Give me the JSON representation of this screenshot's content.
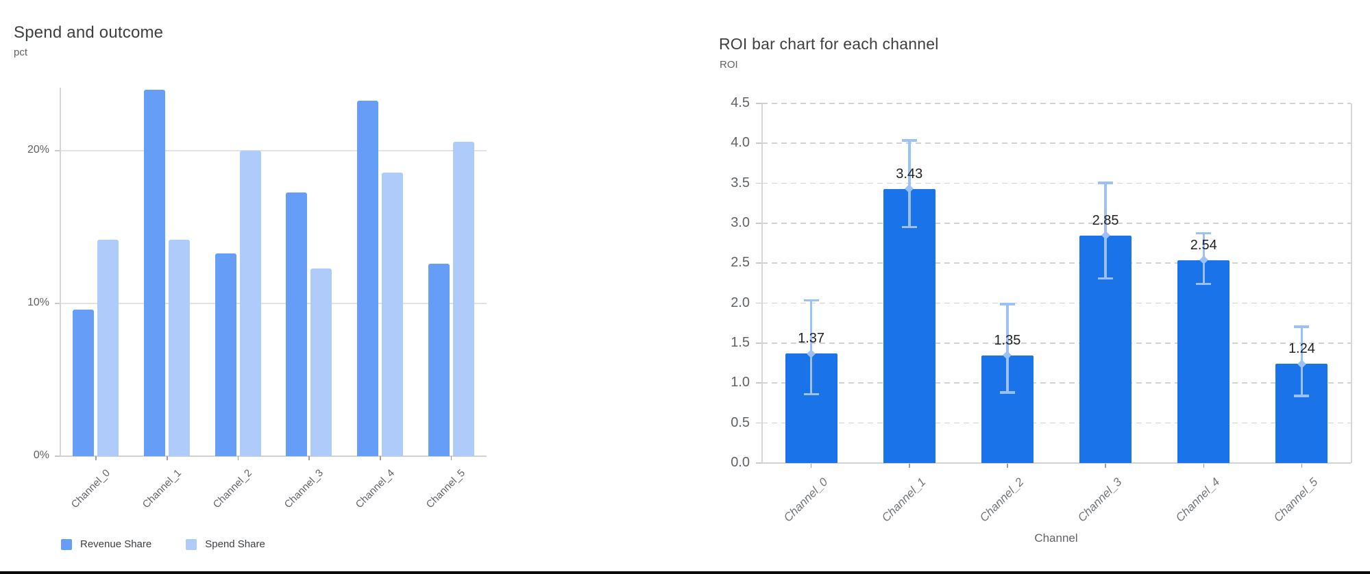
{
  "chart_data": [
    {
      "type": "bar",
      "title": "Spend and outcome",
      "ylabel": "pct",
      "xlabel": "",
      "categories": [
        "Channel_0",
        "Channel_1",
        "Channel_2",
        "Channel_3",
        "Channel_4",
        "Channel_5"
      ],
      "series": [
        {
          "name": "Revenue Share",
          "color": "#669df6",
          "values": [
            9.6,
            24.0,
            13.3,
            17.3,
            23.3,
            12.6
          ]
        },
        {
          "name": "Spend Share",
          "color": "#aecbfa",
          "values": [
            14.2,
            14.2,
            20.0,
            12.3,
            18.6,
            20.6
          ]
        }
      ],
      "values_unit": "percent",
      "ylim": [
        0,
        24.15
      ],
      "y_ticks": [
        {
          "value": 0,
          "label": "0%"
        },
        {
          "value": 10,
          "label": "10%"
        },
        {
          "value": 20,
          "label": "20%"
        }
      ],
      "grid": "horizontal-solid",
      "legend_position": "bottom-left"
    },
    {
      "type": "bar",
      "title": "ROI bar chart for each channel",
      "ylabel": "ROI",
      "xlabel": "Channel",
      "categories": [
        "Channel_0",
        "Channel_1",
        "Channel_2",
        "Channel_3",
        "Channel_4",
        "Channel_5"
      ],
      "values": [
        1.37,
        3.43,
        1.35,
        2.85,
        2.54,
        1.24
      ],
      "data_labels": [
        "1.37",
        "3.43",
        "1.35",
        "2.85",
        "2.54",
        "1.24"
      ],
      "error_bars": {
        "low": [
          0.86,
          2.95,
          0.88,
          2.31,
          2.24,
          0.84
        ],
        "high": [
          2.04,
          4.04,
          1.99,
          3.51,
          2.88,
          1.71
        ]
      },
      "bar_color": "#1a73e8",
      "error_color": "#9cc0f9",
      "ylim": [
        0,
        4.5
      ],
      "y_ticks": [
        {
          "value": 0.0,
          "label": "0.0"
        },
        {
          "value": 0.5,
          "label": "0.5"
        },
        {
          "value": 1.0,
          "label": "1.0"
        },
        {
          "value": 1.5,
          "label": "1.5"
        },
        {
          "value": 2.0,
          "label": "2.0"
        },
        {
          "value": 2.5,
          "label": "2.5"
        },
        {
          "value": 3.0,
          "label": "3.0"
        },
        {
          "value": 3.5,
          "label": "3.5"
        },
        {
          "value": 4.0,
          "label": "4.0"
        },
        {
          "value": 4.5,
          "label": "4.5"
        }
      ],
      "grid": "horizontal-dashed",
      "legend_position": "none"
    }
  ]
}
